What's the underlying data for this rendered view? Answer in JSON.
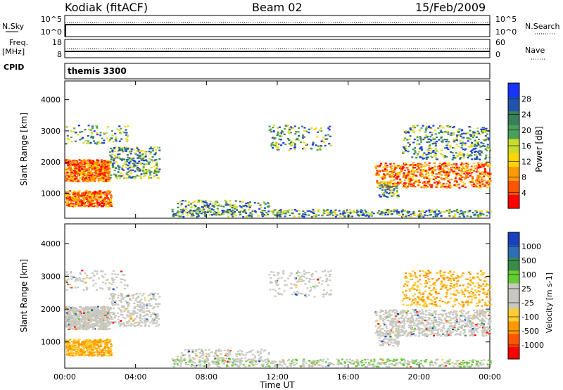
{
  "header": {
    "station": "Kodiak (fitACF)",
    "beam": "Beam 02",
    "date": "15/Feb/2009"
  },
  "panels": {
    "nsky_label": "N.Sky",
    "nsky_ticks": [
      "10^5",
      "10^0"
    ],
    "nsearch_label": "N.Search",
    "nsearch_ticks": [
      "10^5",
      "10^0"
    ],
    "freq_label": "Freq.",
    "freq_unit": "[MHz]",
    "freq_ticks": [
      "18",
      "8"
    ],
    "nave_label": "Nave",
    "nave_ticks": [
      "60",
      "0"
    ],
    "cpid_label": "CPID",
    "cpid_value": "themis 3300"
  },
  "chart_data": [
    {
      "type": "heatmap",
      "name": "power",
      "ylabel": "Slant Range [km]",
      "yticks": [
        1000,
        2000,
        3000,
        4000
      ],
      "ylim": [
        200,
        4600
      ],
      "xlim": [
        0,
        24
      ],
      "colorbar_label": "Power [dB]",
      "colorbar_ticks": [
        "28",
        "24",
        "20",
        "16",
        "12",
        "8",
        "4"
      ],
      "colorscale": [
        "#1633ff",
        "#2255aa",
        "#3b7f5a",
        "#4aa05a",
        "#c8dc2a",
        "#ffd400",
        "#ff9900",
        "#ff5500",
        "#ff0000"
      ]
    },
    {
      "type": "heatmap",
      "name": "velocity",
      "ylabel": "Slant Range [km]",
      "yticks": [
        1000,
        2000,
        3000,
        4000
      ],
      "ylim": [
        200,
        4600
      ],
      "xlim": [
        0,
        24
      ],
      "colorbar_label": "Velocity [m s-1]",
      "colorbar_ticks": [
        "1000",
        "500",
        "100",
        "25",
        "-25",
        "-100",
        "-500",
        "-1000"
      ],
      "colorscale": [
        "#1a3fbf",
        "#2d6fb5",
        "#3a8a4a",
        "#66cc33",
        "#c8c8c0",
        "#c8c8c0",
        "#ffcc33",
        "#ff9900",
        "#ff5500",
        "#ff0000"
      ]
    }
  ],
  "xaxis": {
    "ticks": [
      "00:00",
      "04:00",
      "08:00",
      "12:00",
      "16:00",
      "20:00",
      "00:00"
    ],
    "label": "Time UT"
  }
}
